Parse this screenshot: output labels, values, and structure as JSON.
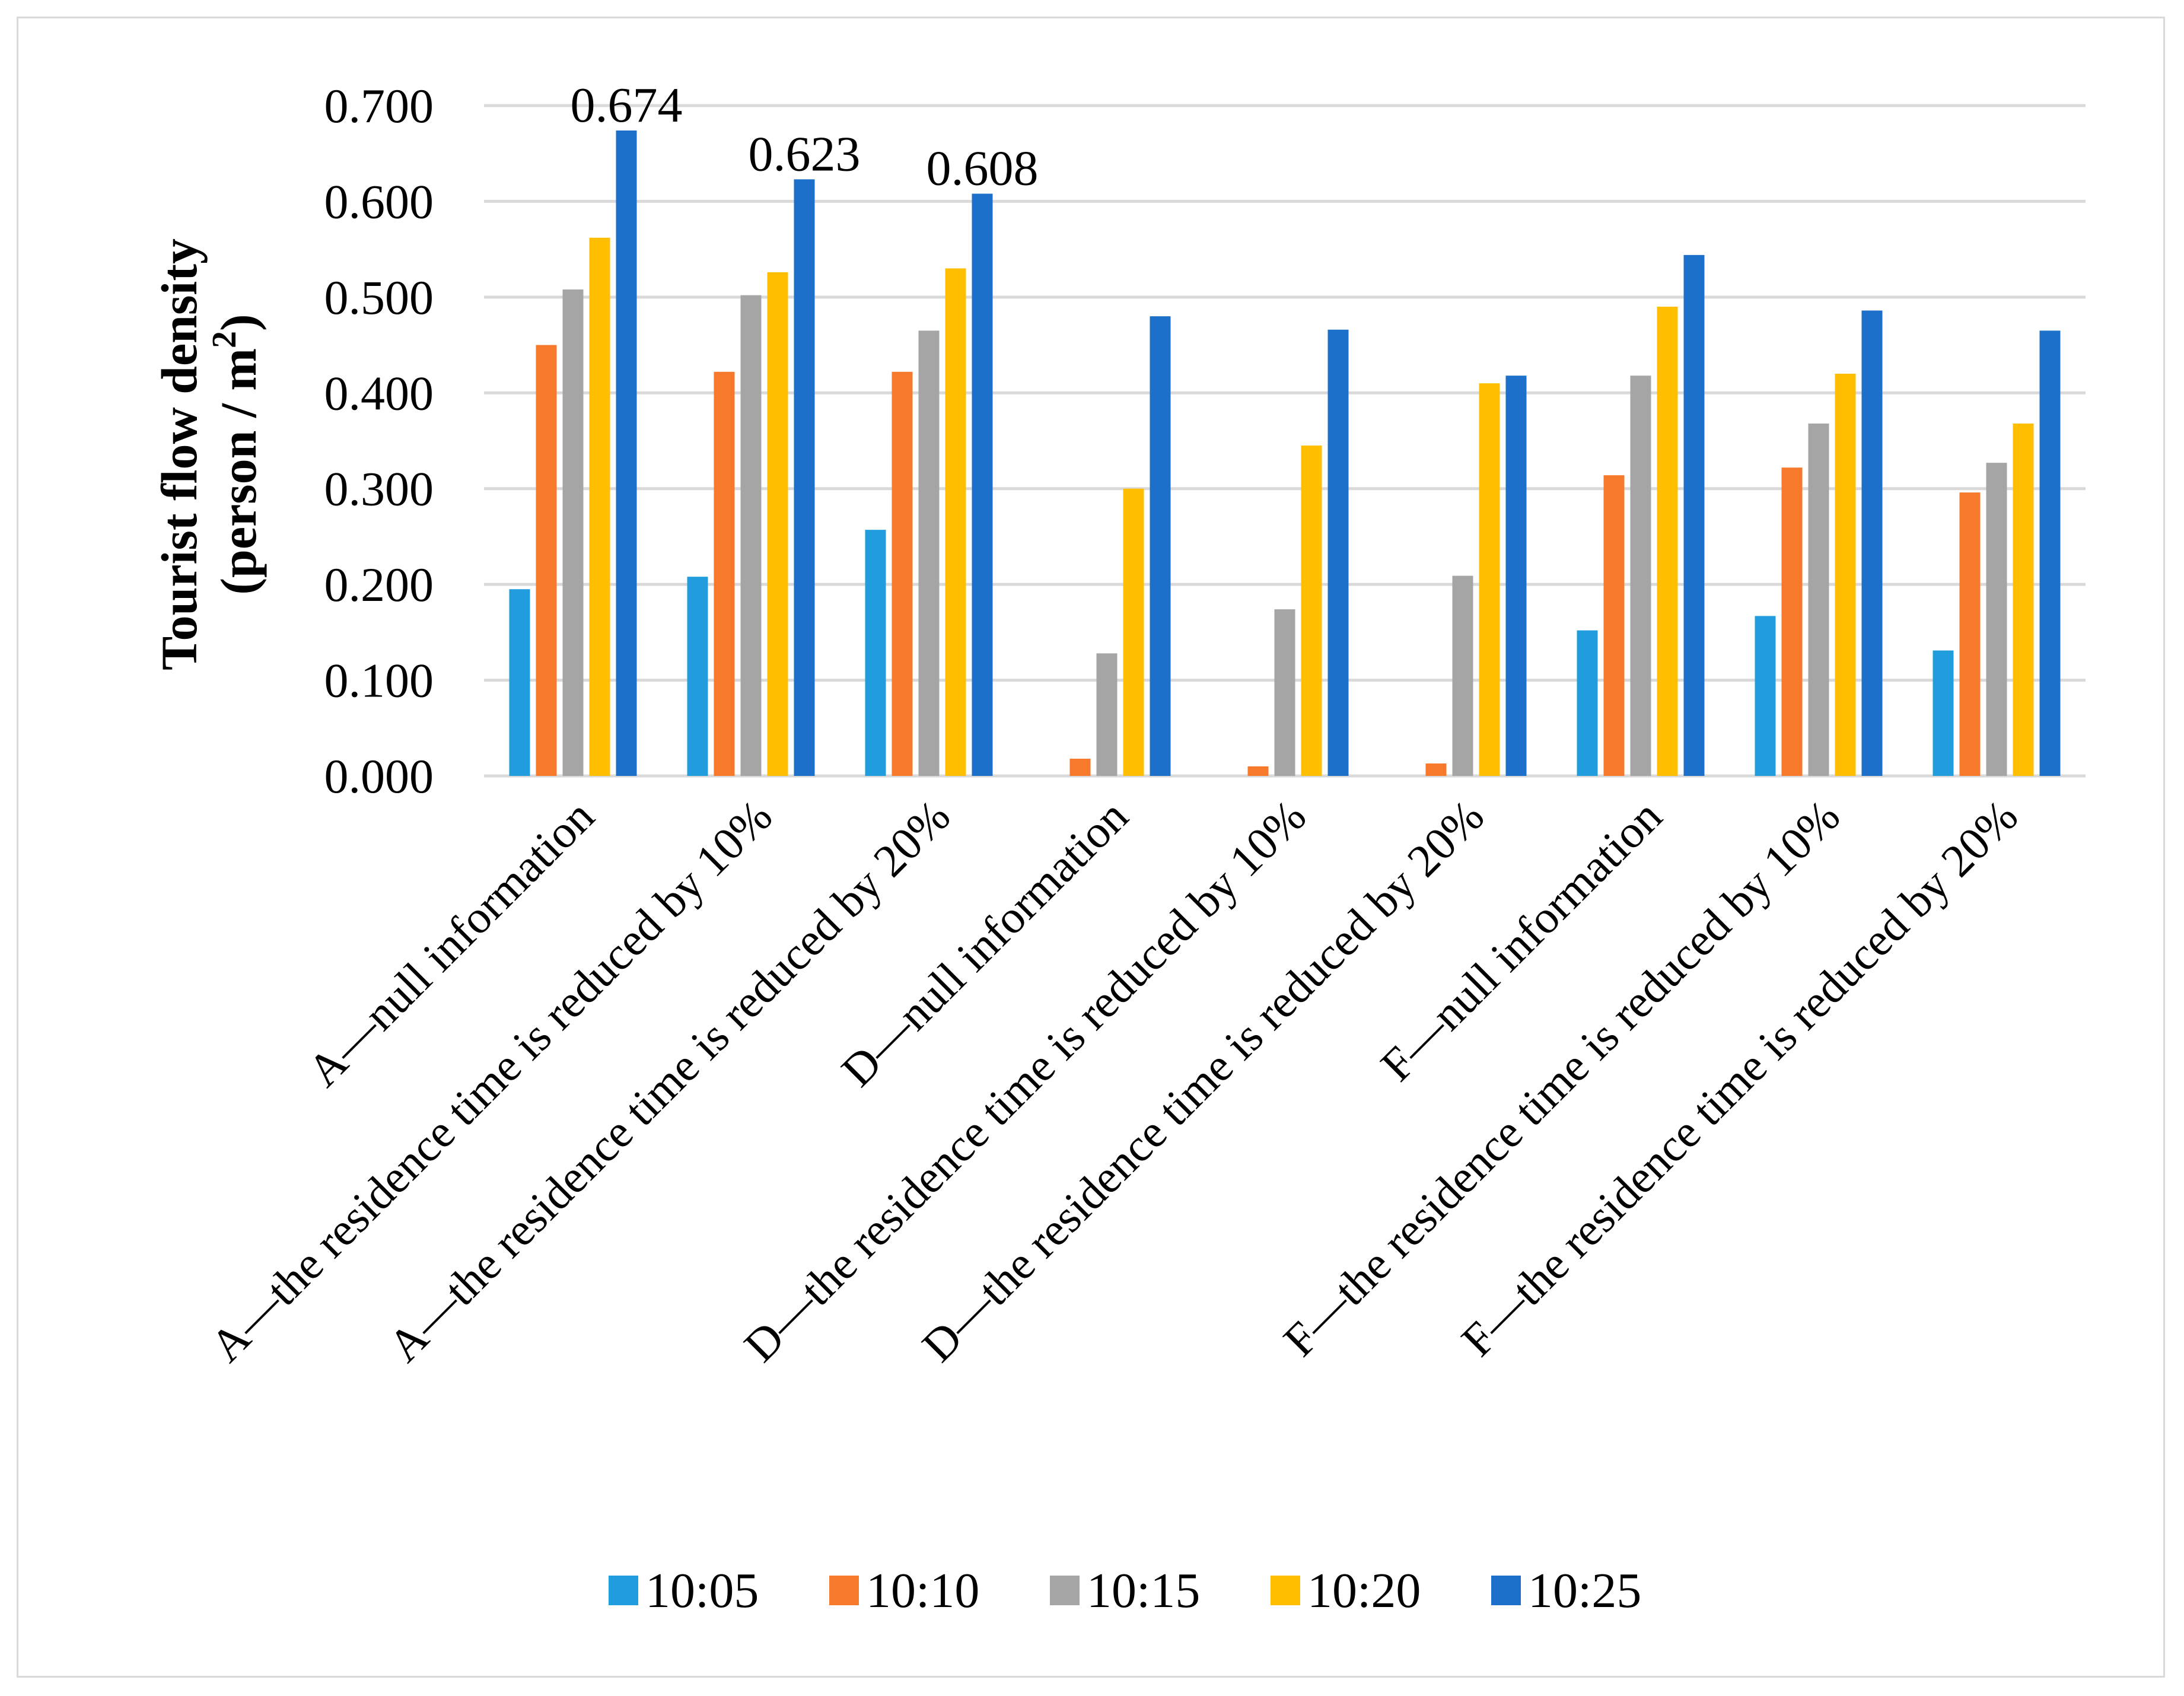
{
  "chart_data": {
    "type": "bar",
    "title": "",
    "xlabel": "",
    "ylabel_line1": "Tourist flow density",
    "ylabel_line2_prefix": "(person / m",
    "ylabel_line2_sup": "2",
    "ylabel_line2_suffix": ")",
    "ylim": [
      0,
      0.7
    ],
    "yticks": [
      "0.000",
      "0.100",
      "0.200",
      "0.300",
      "0.400",
      "0.500",
      "0.600",
      "0.700"
    ],
    "grid": true,
    "legend_position": "bottom",
    "categories": [
      "A—null information",
      "A—the residence time is reduced by 10%",
      "A—the residence time is reduced by 20%",
      "D—null information",
      "D—the residence time is reduced by 10%",
      "D—the residence time is reduced by 20%",
      "F—null information",
      "F—the residence time is reduced by 10%",
      "F—the residence time is reduced by 20%"
    ],
    "series": [
      {
        "name": "10:05",
        "color": "#219ddd",
        "values": [
          0.195,
          0.208,
          0.257,
          0,
          0,
          0,
          0.152,
          0.167,
          0.131
        ]
      },
      {
        "name": "10:10",
        "color": "#f7792b",
        "values": [
          0.45,
          0.422,
          0.422,
          0.018,
          0.01,
          0.013,
          0.314,
          0.322,
          0.296
        ]
      },
      {
        "name": "10:15",
        "color": "#a5a5a5",
        "values": [
          0.508,
          0.502,
          0.465,
          0.128,
          0.174,
          0.209,
          0.418,
          0.368,
          0.327
        ]
      },
      {
        "name": "10:20",
        "color": "#ffbf00",
        "values": [
          0.562,
          0.526,
          0.53,
          0.3,
          0.345,
          0.41,
          0.49,
          0.42,
          0.368
        ]
      },
      {
        "name": "10:25",
        "color": "#1c70c9",
        "values": [
          0.674,
          0.623,
          0.608,
          0.48,
          0.466,
          0.418,
          0.544,
          0.486,
          0.465
        ]
      }
    ],
    "data_labels": [
      {
        "category_index": 0,
        "series": "10:25",
        "text": "0.674"
      },
      {
        "category_index": 1,
        "series": "10:25",
        "text": "0.623"
      },
      {
        "category_index": 2,
        "series": "10:25",
        "text": "0.608"
      }
    ]
  }
}
